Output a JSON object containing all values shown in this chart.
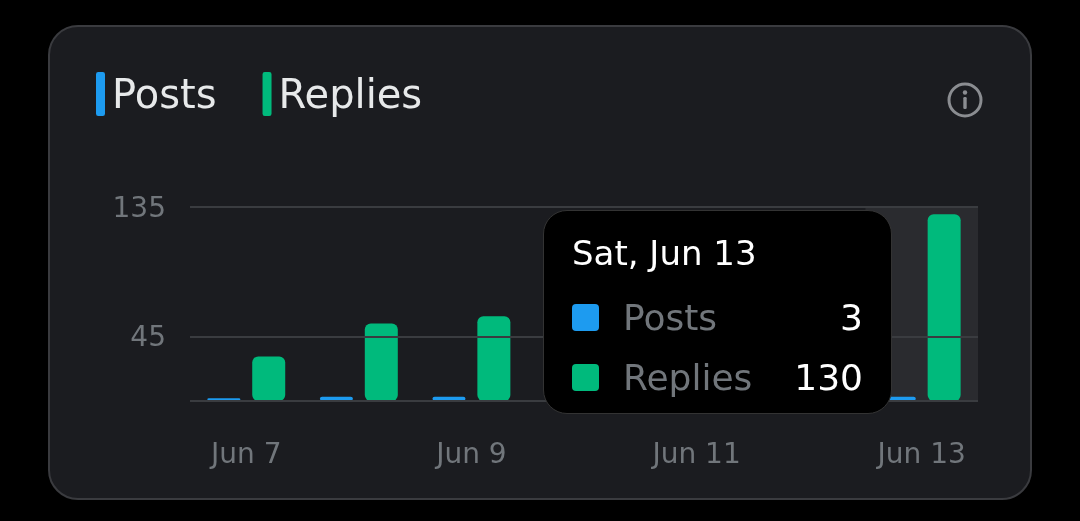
{
  "chart_data": {
    "type": "bar",
    "categories": [
      "Jun 7",
      null,
      "Jun 9",
      null,
      "Jun 11",
      null,
      "Jun 13"
    ],
    "series": [
      {
        "name": "Posts",
        "color": "#1d9bf0",
        "values": [
          2,
          3,
          3,
          null,
          null,
          null,
          3
        ]
      },
      {
        "name": "Replies",
        "color": "#00ba7c",
        "values": [
          31,
          54,
          59,
          null,
          null,
          null,
          130
        ]
      }
    ],
    "ylim": [
      0,
      135
    ],
    "yticks": [
      {
        "value": 0,
        "label": null
      },
      45,
      135
    ],
    "grid": "y",
    "legend": "top left",
    "bands": [
      {
        "axis": "x",
        "from": "Jun 13",
        "to": "Jun 13",
        "color": "#2a2b2f"
      }
    ],
    "annotations": [
      "Sat, Jun 13",
      "Posts",
      "3",
      "Replies",
      "130"
    ]
  }
}
